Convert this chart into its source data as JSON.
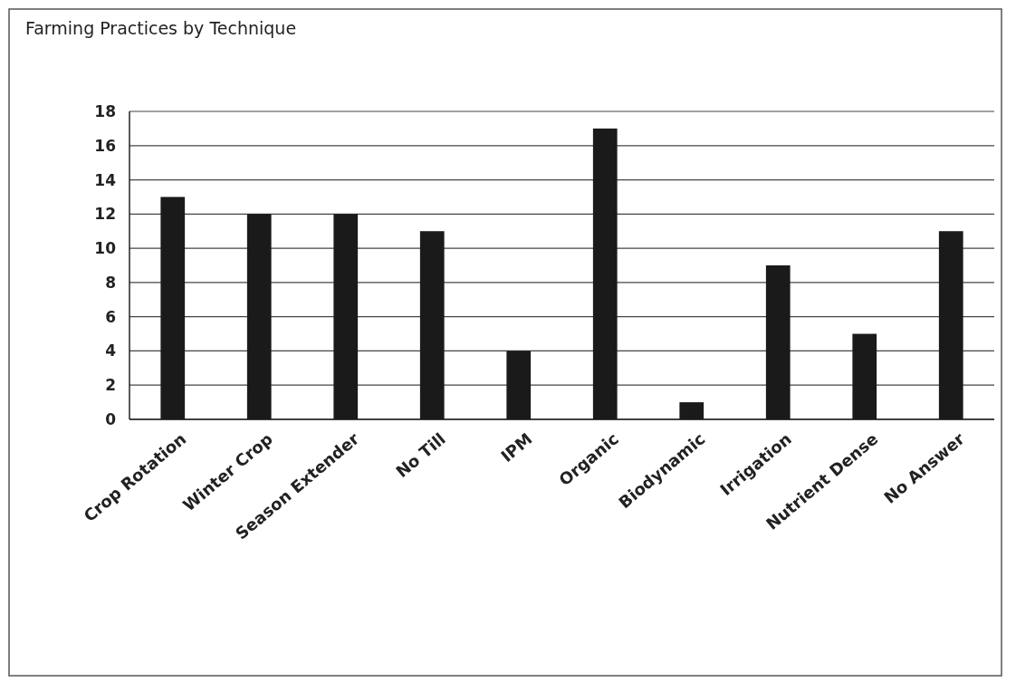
{
  "chart_data": {
    "type": "bar",
    "title": "Farming Practices by Technique",
    "categories": [
      "Crop Rotation",
      "Winter Crop",
      "Season Extender",
      "No Till",
      "IPM",
      "Organic",
      "Biodynamic",
      "Irrigation",
      "Nutrient Dense",
      "No Answer"
    ],
    "values": [
      13,
      12,
      12,
      11,
      4,
      17,
      1,
      9,
      5,
      11
    ],
    "color": "#1a1a1a",
    "ylim": [
      0,
      18
    ],
    "yticks": [
      0,
      2,
      4,
      6,
      8,
      10,
      12,
      14,
      16,
      18
    ],
    "grid": "y"
  }
}
